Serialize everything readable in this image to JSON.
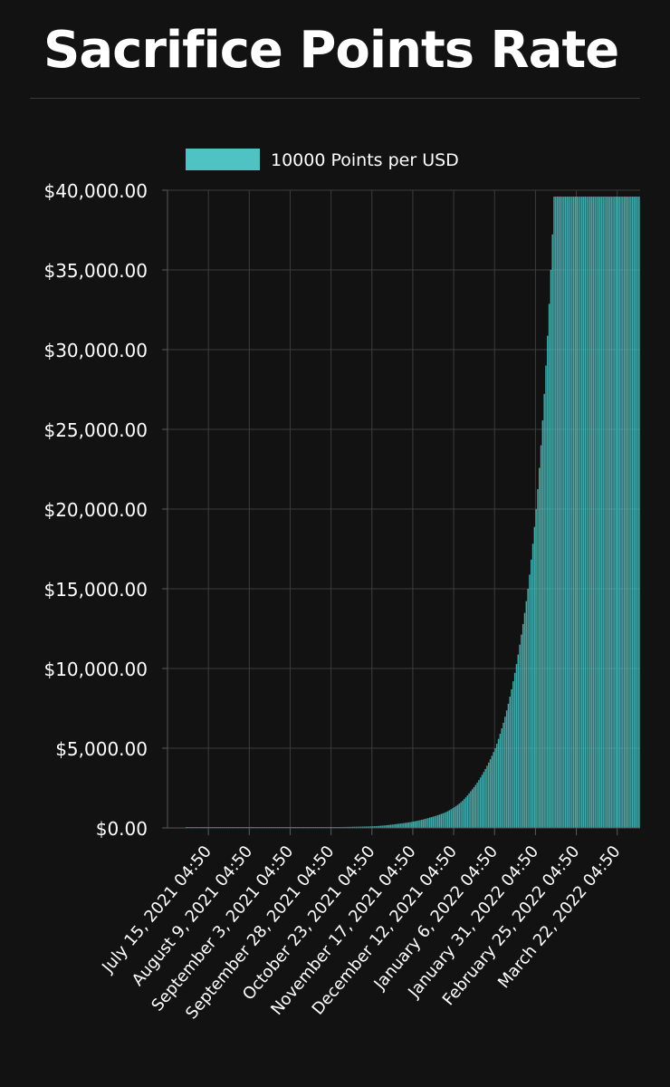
{
  "page": {
    "title": "Sacrifice Points Rate"
  },
  "chart_data": {
    "type": "bar",
    "title": "Sacrifice Points Rate",
    "legend": {
      "position": "top",
      "entries": [
        {
          "label": "10000 Points per USD",
          "color": "#4fc3c3"
        }
      ]
    },
    "series": [
      {
        "name": "10000 Points per USD",
        "color": "#4fc3c3"
      }
    ],
    "xlabel": "",
    "ylabel": "",
    "grid": true,
    "ylim": [
      0,
      40000
    ],
    "y_ticks": [
      {
        "value": 0,
        "label": "$0.00"
      },
      {
        "value": 5000,
        "label": "$5,000.00"
      },
      {
        "value": 10000,
        "label": "$10,000.00"
      },
      {
        "value": 15000,
        "label": "$15,000.00"
      },
      {
        "value": 20000,
        "label": "$20,000.00"
      },
      {
        "value": 25000,
        "label": "$25,000.00"
      },
      {
        "value": 30000,
        "label": "$30,000.00"
      },
      {
        "value": 35000,
        "label": "$35,000.00"
      },
      {
        "value": 40000,
        "label": "$40,000.00"
      }
    ],
    "xlim": [
      "2021-06-20",
      "2022-04-05"
    ],
    "x_ticks": [
      {
        "date": "2021-07-15",
        "label": "July 15, 2021 04:50"
      },
      {
        "date": "2021-08-09",
        "label": "August 9, 2021 04:50"
      },
      {
        "date": "2021-09-03",
        "label": "September 3, 2021 04:50"
      },
      {
        "date": "2021-09-28",
        "label": "September 28, 2021 04:50"
      },
      {
        "date": "2021-10-23",
        "label": "October 23, 2021 04:50"
      },
      {
        "date": "2021-11-17",
        "label": "November 17, 2021 04:50"
      },
      {
        "date": "2021-12-12",
        "label": "December 12, 2021 04:50"
      },
      {
        "date": "2022-01-06",
        "label": "January 6, 2022 04:50"
      },
      {
        "date": "2022-01-31",
        "label": "January 31, 2022 04:50"
      },
      {
        "date": "2022-02-25",
        "label": "February 25, 2022 04:50"
      },
      {
        "date": "2022-03-22",
        "label": "March 22, 2022 04:50"
      }
    ],
    "points": [
      {
        "date": "2021-07-15",
        "value": 10
      },
      {
        "date": "2021-08-09",
        "value": 20
      },
      {
        "date": "2021-09-03",
        "value": 30
      },
      {
        "date": "2021-09-28",
        "value": 50
      },
      {
        "date": "2021-10-23",
        "value": 100
      },
      {
        "date": "2021-11-07",
        "value": 250
      },
      {
        "date": "2021-11-17",
        "value": 400
      },
      {
        "date": "2021-11-27",
        "value": 650
      },
      {
        "date": "2021-12-07",
        "value": 1000
      },
      {
        "date": "2021-12-12",
        "value": 1300
      },
      {
        "date": "2021-12-17",
        "value": 1700
      },
      {
        "date": "2021-12-22",
        "value": 2300
      },
      {
        "date": "2021-12-27",
        "value": 3000
      },
      {
        "date": "2022-01-01",
        "value": 3900
      },
      {
        "date": "2022-01-06",
        "value": 5000
      },
      {
        "date": "2022-01-11",
        "value": 6600
      },
      {
        "date": "2022-01-16",
        "value": 8700
      },
      {
        "date": "2022-01-21",
        "value": 11500
      },
      {
        "date": "2022-01-26",
        "value": 15000
      },
      {
        "date": "2022-01-31",
        "value": 20000
      },
      {
        "date": "2022-02-03",
        "value": 24000
      },
      {
        "date": "2022-02-06",
        "value": 29000
      },
      {
        "date": "2022-02-09",
        "value": 35000
      },
      {
        "date": "2022-02-11",
        "value": 39600
      },
      {
        "date": "2022-04-05",
        "value": 39600
      }
    ]
  }
}
